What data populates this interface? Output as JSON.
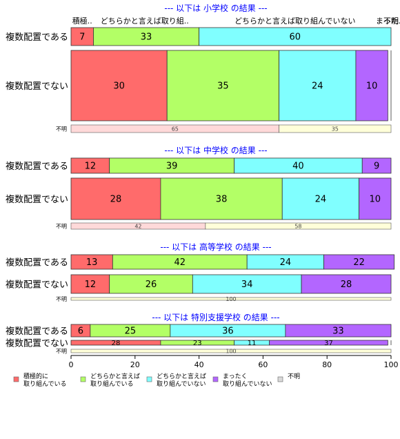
{
  "chart_data": {
    "type": "bar",
    "orientation": "horizontal",
    "stacked": "percent",
    "xlim": [
      0,
      100
    ],
    "x_ticks": [
      0,
      20,
      40,
      60,
      80,
      100
    ],
    "top_labels": [
      {
        "text": "積極..",
        "at": 3.5
      },
      {
        "text": "どちらかと言えば取り組..",
        "at": 23
      },
      {
        "text": "どちらかと言えば取り組んでいない",
        "at": 70
      },
      {
        "text": "まった..",
        "at": 99.5
      },
      {
        "text": "不明",
        "at": 100
      }
    ],
    "legend": {
      "position": "bottom",
      "items": [
        {
          "label": "積極的に\n取り組んでいる",
          "color": "#ff6b6b"
        },
        {
          "label": "どちらかと言えば\n取り組んでいる",
          "color": "#b3ff66"
        },
        {
          "label": "どちらかと言えば\n取り組んでいない",
          "color": "#80ffff"
        },
        {
          "label": "まったく\n取り組んでいない",
          "color": "#b366ff"
        },
        {
          "label": "不明",
          "color": "#d9d9d9"
        }
      ]
    },
    "groups": [
      {
        "title": "--- 以下は 小学校 の結果 ---",
        "rows": [
          {
            "label": "複数配置である",
            "kind": "main",
            "values": [
              7,
              33,
              60,
              0,
              0
            ]
          },
          {
            "label": "複数配置でない",
            "kind": "main",
            "values": [
              30,
              35,
              24,
              10,
              0
            ]
          },
          {
            "label": "不明",
            "kind": "missing",
            "values": [
              65,
              35
            ]
          }
        ]
      },
      {
        "title": "--- 以下は 中学校 の結果 ---",
        "rows": [
          {
            "label": "複数配置である",
            "kind": "main",
            "values": [
              12,
              39,
              40,
              9,
              0
            ]
          },
          {
            "label": "複数配置でない",
            "kind": "main",
            "values": [
              28,
              38,
              24,
              10,
              0
            ]
          },
          {
            "label": "不明",
            "kind": "missing",
            "values": [
              42,
              58
            ]
          }
        ]
      },
      {
        "title": "--- 以下は 高等学校 の結果 ---",
        "rows": [
          {
            "label": "複数配置である",
            "kind": "main",
            "values": [
              13,
              42,
              24,
              22,
              0
            ]
          },
          {
            "label": "複数配置でない",
            "kind": "main",
            "values": [
              12,
              26,
              34,
              28,
              0
            ]
          },
          {
            "label": "不明",
            "kind": "missing",
            "values": [
              0,
              100
            ]
          }
        ]
      },
      {
        "title": "--- 以下は 特別支援学校 の結果 ---",
        "rows": [
          {
            "label": "複数配置である",
            "kind": "main",
            "values": [
              6,
              25,
              36,
              33,
              0
            ]
          },
          {
            "label": "複数配置でない",
            "kind": "main",
            "values": [
              28,
              23,
              11,
              37,
              0
            ]
          },
          {
            "label": "不明",
            "kind": "missing",
            "values": [
              0,
              100
            ]
          }
        ]
      }
    ],
    "missing_colors": [
      "#ffd9d9",
      "#ffffd9"
    ],
    "title_color": "#0000ff"
  }
}
